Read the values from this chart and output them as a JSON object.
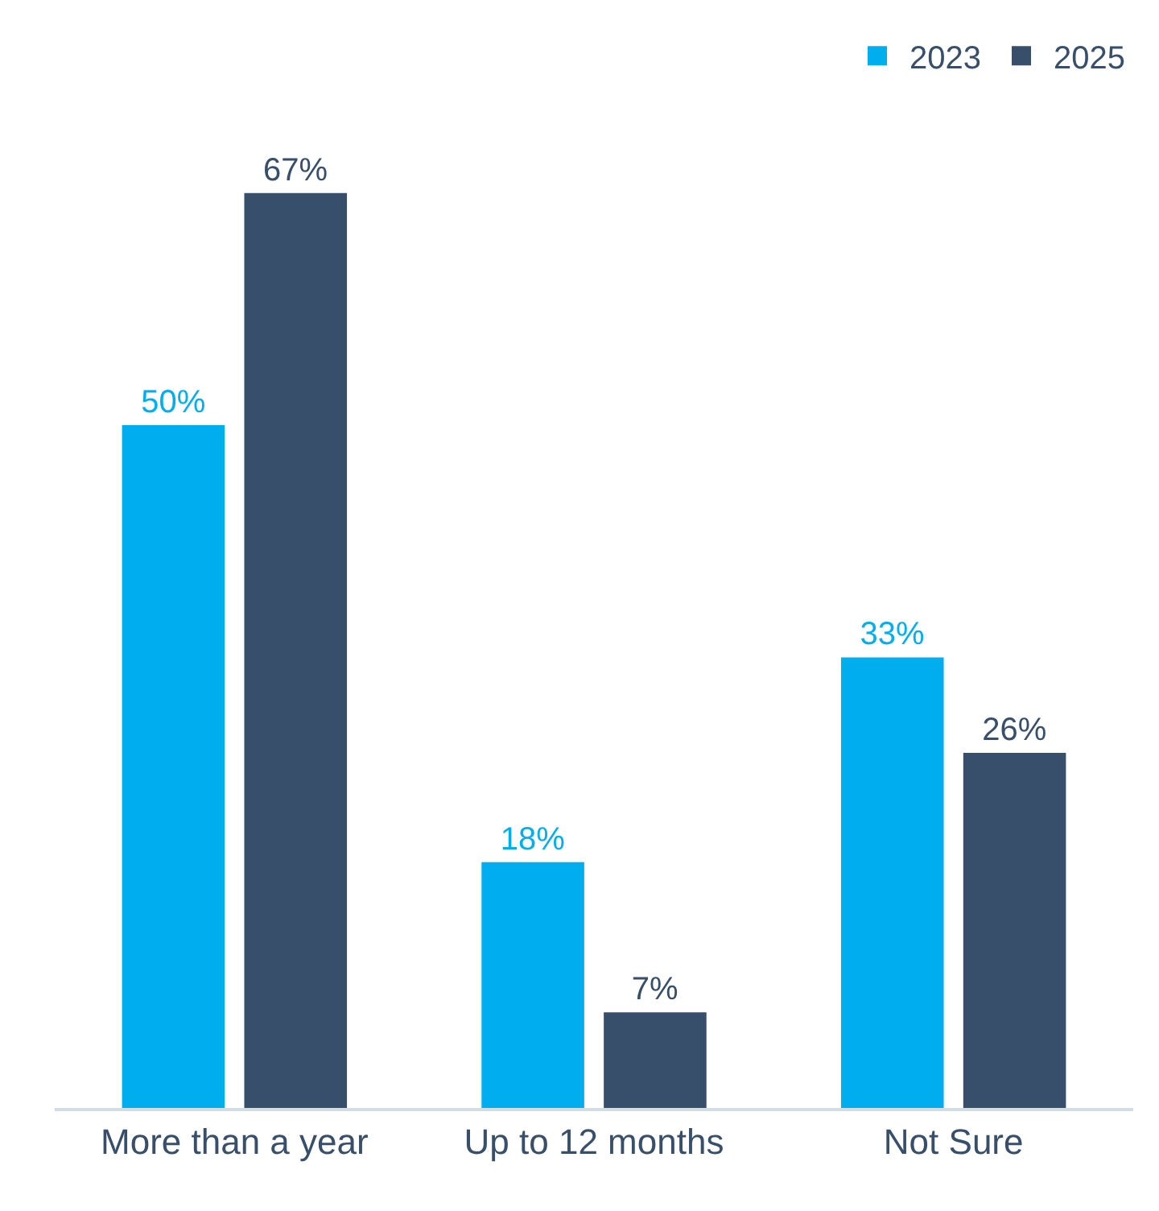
{
  "chart_data": {
    "type": "bar",
    "categories": [
      "More than a year",
      "Up to 12 months",
      "Not Sure"
    ],
    "series": [
      {
        "name": "2023",
        "color": "#00adef",
        "values": [
          50,
          18,
          33
        ],
        "value_labels": [
          "50%",
          "18%",
          "33%"
        ]
      },
      {
        "name": "2025",
        "color": "#384f6b",
        "values": [
          67,
          7,
          26
        ],
        "value_labels": [
          "67%",
          "7%",
          "26%"
        ]
      }
    ],
    "legend": "top right",
    "tick_labels": "x"
  }
}
